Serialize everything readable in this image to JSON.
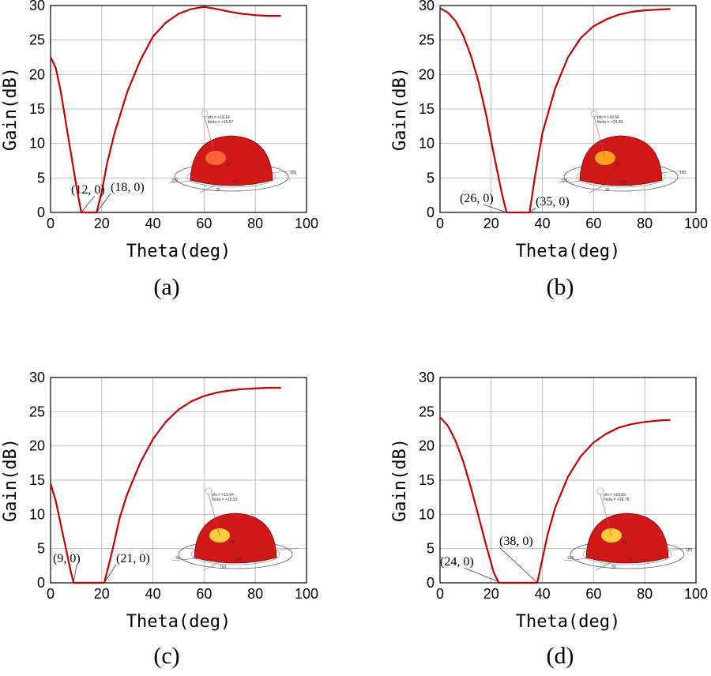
{
  "figure_title": "",
  "chart_data": [
    {
      "type": "line",
      "caption": "(a)",
      "xlabel": "Theta(deg)",
      "ylabel": "Gain(dB)",
      "xlim": [
        0,
        100
      ],
      "ylim": [
        0,
        30
      ],
      "xticks": [
        0,
        20,
        40,
        60,
        80,
        100
      ],
      "yticks": [
        0,
        5,
        10,
        15,
        20,
        25,
        30
      ],
      "grid": true,
      "series": [
        {
          "name": "Gain",
          "color": "#c00000",
          "x": [
            0,
            2,
            4,
            6,
            8,
            10,
            12,
            14,
            16,
            18,
            20,
            22,
            25,
            30,
            35,
            40,
            45,
            50,
            55,
            60,
            65,
            70,
            75,
            80,
            85,
            90
          ],
          "y": [
            22.5,
            21,
            17.5,
            13,
            8.5,
            4,
            0,
            0,
            0,
            0,
            3,
            7,
            11.5,
            17.5,
            22,
            25.5,
            27.5,
            28.8,
            29.5,
            29.8,
            29.5,
            29.1,
            28.8,
            28.6,
            28.5,
            28.5
          ]
        }
      ],
      "annotations": [
        {
          "text": "(12,  0)",
          "x": 12,
          "y": 0
        },
        {
          "text": "(18,  0)",
          "x": 18,
          "y": 0
        }
      ],
      "inset": {
        "phi": "phi = +16.14",
        "theta": "theta = +15.57",
        "labels": [
          "-22",
          "-30",
          "330",
          "30",
          "150"
        ],
        "base_color": "#d01818",
        "hot_color": "#ff6a3a"
      }
    },
    {
      "type": "line",
      "caption": "(b)",
      "xlabel": "Theta(deg)",
      "ylabel": "Gain(dB)",
      "xlim": [
        0,
        100
      ],
      "ylim": [
        0,
        30
      ],
      "xticks": [
        0,
        20,
        40,
        60,
        80,
        100
      ],
      "yticks": [
        0,
        5,
        10,
        15,
        20,
        25,
        30
      ],
      "grid": true,
      "series": [
        {
          "name": "Gain",
          "color": "#c00000",
          "x": [
            0,
            3,
            6,
            9,
            12,
            15,
            18,
            21,
            24,
            26,
            28,
            30,
            32,
            35,
            37,
            40,
            45,
            50,
            55,
            60,
            65,
            70,
            75,
            80,
            85,
            90
          ],
          "y": [
            29.6,
            29,
            27.8,
            25.7,
            22.8,
            19,
            14.2,
            8.5,
            3,
            0,
            0,
            0,
            0,
            0,
            5,
            11.5,
            18,
            22.5,
            25.3,
            27,
            28,
            28.7,
            29.1,
            29.3,
            29.4,
            29.5
          ]
        }
      ],
      "annotations": [
        {
          "text": "(26,  0)",
          "x": 26,
          "y": 0
        },
        {
          "text": "(35,  0)",
          "x": 35,
          "y": 0
        }
      ],
      "inset": {
        "phi": "phi = +30.64",
        "theta": "theta = +29.89",
        "labels": [
          "-22",
          "-30",
          "330",
          "30",
          "150"
        ],
        "base_color": "#d01818",
        "hot_color": "#ffb020"
      }
    },
    {
      "type": "line",
      "caption": "(c)",
      "xlabel": "Theta(deg)",
      "ylabel": "Gain(dB)",
      "xlim": [
        0,
        100
      ],
      "ylim": [
        0,
        30
      ],
      "xticks": [
        0,
        20,
        40,
        60,
        80,
        100
      ],
      "yticks": [
        0,
        5,
        10,
        15,
        20,
        25,
        30
      ],
      "grid": true,
      "series": [
        {
          "name": "Gain",
          "color": "#c00000",
          "x": [
            0,
            2,
            4,
            6,
            8,
            9,
            12,
            15,
            18,
            21,
            24,
            27,
            30,
            35,
            40,
            45,
            50,
            55,
            60,
            65,
            70,
            75,
            80,
            85,
            90
          ],
          "y": [
            14.5,
            12,
            8.5,
            5,
            1.5,
            0,
            0,
            0,
            0,
            0,
            4.5,
            9.5,
            13,
            17.5,
            21,
            23.5,
            25.3,
            26.5,
            27.3,
            27.8,
            28.1,
            28.3,
            28.4,
            28.5,
            28.5
          ]
        }
      ],
      "annotations": [
        {
          "text": "(9,  0)",
          "x": 9,
          "y": 0
        },
        {
          "text": "(21,  0)",
          "x": 21,
          "y": 0
        }
      ],
      "inset": {
        "phi": "phi = +15.64",
        "theta": "theta = +15.23",
        "labels": [
          "-30",
          "330",
          "30",
          "150"
        ],
        "base_color": "#d01818",
        "hot_color": "#ffe040"
      }
    },
    {
      "type": "line",
      "caption": "(d)",
      "xlabel": "Theta(deg)",
      "ylabel": "Gain(dB)",
      "xlim": [
        0,
        100
      ],
      "ylim": [
        0,
        30
      ],
      "xticks": [
        0,
        20,
        40,
        60,
        80,
        100
      ],
      "yticks": [
        0,
        5,
        10,
        15,
        20,
        25,
        30
      ],
      "grid": true,
      "series": [
        {
          "name": "Gain",
          "color": "#c00000",
          "x": [
            0,
            3,
            6,
            9,
            12,
            15,
            18,
            21,
            23,
            26,
            30,
            34,
            38,
            40,
            42,
            45,
            50,
            55,
            60,
            65,
            70,
            75,
            80,
            85,
            90
          ],
          "y": [
            24.2,
            23,
            20.8,
            17.8,
            14,
            9.8,
            5.5,
            1.5,
            0,
            0,
            0,
            0,
            0,
            3.5,
            7,
            11,
            15.5,
            18.5,
            20.5,
            21.8,
            22.7,
            23.2,
            23.5,
            23.7,
            23.8
          ]
        }
      ],
      "annotations": [
        {
          "text": "(24,  0)",
          "x": 24,
          "y": 0
        },
        {
          "text": "(38,  0)",
          "x": 38,
          "y": 0
        }
      ],
      "inset": {
        "phi": "phi = +29.83",
        "theta": "theta = +29.78",
        "labels": [
          "-25",
          "-30",
          "330",
          "30",
          "150"
        ],
        "base_color": "#d01818",
        "hot_color": "#ffe040"
      }
    }
  ]
}
